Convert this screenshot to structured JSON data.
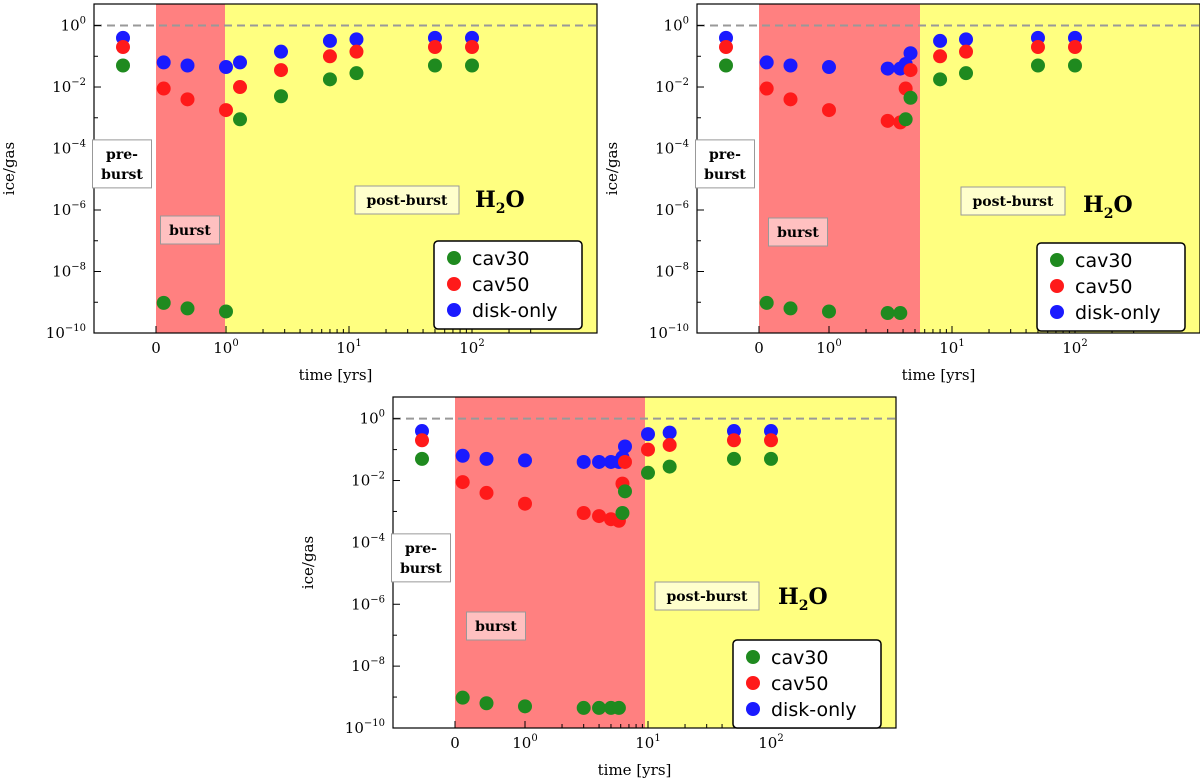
{
  "chart_data": [
    {
      "type": "scatter",
      "title": "",
      "species": {
        "base": "H",
        "sub": "2",
        "tail": "O"
      },
      "xlabel": "time [yrs]",
      "ylabel": "ice/gas",
      "ylim_log10": [
        -10,
        0.7
      ],
      "reference_line": 1,
      "regions": [
        {
          "name": "pre-burst",
          "label": [
            "pre-",
            "burst"
          ],
          "color": "#ffffff"
        },
        {
          "name": "burst",
          "label": [
            "burst"
          ],
          "color": "#ff8080"
        },
        {
          "name": "post-burst",
          "label": [
            "post-burst"
          ],
          "color": "#ffff80"
        }
      ],
      "series": [
        {
          "name": "cav30",
          "color": "#1f8a1f",
          "points": [
            [
              "pre",
              -1.3
            ],
            [
              0.11,
              -9.02
            ],
            [
              0.45,
              -9.2
            ],
            [
              1.0,
              -9.3
            ],
            [
              1.3,
              -3.05
            ],
            [
              2.8,
              -2.3
            ],
            [
              7.0,
              -1.75
            ],
            [
              11.5,
              -1.55
            ],
            [
              50,
              -1.3
            ],
            [
              100,
              -1.3
            ]
          ]
        },
        {
          "name": "cav50",
          "color": "#ff1a1a",
          "points": [
            [
              "pre",
              -0.7
            ],
            [
              0.11,
              -2.05
            ],
            [
              0.45,
              -2.4
            ],
            [
              1.0,
              -2.75
            ],
            [
              1.3,
              -2.0
            ],
            [
              2.8,
              -1.45
            ],
            [
              7.0,
              -1.0
            ],
            [
              11.5,
              -0.85
            ],
            [
              50,
              -0.7
            ],
            [
              100,
              -0.7
            ]
          ]
        },
        {
          "name": "disk-only",
          "color": "#1a1aff",
          "points": [
            [
              "pre",
              -0.4
            ],
            [
              0.11,
              -1.2
            ],
            [
              0.45,
              -1.3
            ],
            [
              1.0,
              -1.35
            ],
            [
              1.3,
              -1.2
            ],
            [
              2.8,
              -0.85
            ],
            [
              7.0,
              -0.5
            ],
            [
              11.5,
              -0.45
            ],
            [
              50,
              -0.4
            ],
            [
              100,
              -0.4
            ]
          ]
        }
      ],
      "legend": {
        "entries": [
          "cav30",
          "cav50",
          "disk-only"
        ],
        "position": "lower-right"
      }
    },
    {
      "type": "scatter",
      "title": "",
      "species": {
        "base": "H",
        "sub": "2",
        "tail": "O"
      },
      "xlabel": "time [yrs]",
      "ylabel": "ice/gas",
      "ylim_log10": [
        -10,
        0.7
      ],
      "reference_line": 1,
      "regions": [
        {
          "name": "pre-burst",
          "label": [
            "pre-",
            "burst"
          ],
          "color": "#ffffff"
        },
        {
          "name": "burst",
          "label": [
            "burst"
          ],
          "color": "#ff8080"
        },
        {
          "name": "post-burst",
          "label": [
            "post-burst"
          ],
          "color": "#ffff80"
        }
      ],
      "series": [
        {
          "name": "cav30",
          "color": "#1f8a1f",
          "points": [
            [
              "pre",
              -1.3
            ],
            [
              0.11,
              -9.02
            ],
            [
              0.45,
              -9.2
            ],
            [
              1.0,
              -9.3
            ],
            [
              3.0,
              -9.35
            ],
            [
              3.8,
              -9.35
            ],
            [
              4.2,
              -3.05
            ],
            [
              4.6,
              -2.35
            ],
            [
              8.0,
              -1.75
            ],
            [
              13.0,
              -1.55
            ],
            [
              50,
              -1.3
            ],
            [
              100,
              -1.3
            ]
          ]
        },
        {
          "name": "cav50",
          "color": "#ff1a1a",
          "points": [
            [
              "pre",
              -0.7
            ],
            [
              0.11,
              -2.05
            ],
            [
              0.45,
              -2.4
            ],
            [
              1.0,
              -2.75
            ],
            [
              3.0,
              -3.1
            ],
            [
              3.8,
              -3.15
            ],
            [
              4.2,
              -2.05
            ],
            [
              4.6,
              -1.45
            ],
            [
              8.0,
              -1.0
            ],
            [
              13.0,
              -0.85
            ],
            [
              50,
              -0.7
            ],
            [
              100,
              -0.7
            ]
          ]
        },
        {
          "name": "disk-only",
          "color": "#1a1aff",
          "points": [
            [
              "pre",
              -0.4
            ],
            [
              0.11,
              -1.2
            ],
            [
              0.45,
              -1.3
            ],
            [
              1.0,
              -1.35
            ],
            [
              3.0,
              -1.4
            ],
            [
              3.8,
              -1.4
            ],
            [
              4.2,
              -1.25
            ],
            [
              4.6,
              -0.9
            ],
            [
              8.0,
              -0.5
            ],
            [
              13.0,
              -0.45
            ],
            [
              50,
              -0.4
            ],
            [
              100,
              -0.4
            ]
          ]
        }
      ],
      "legend": {
        "entries": [
          "cav30",
          "cav50",
          "disk-only"
        ],
        "position": "lower-right"
      }
    },
    {
      "type": "scatter",
      "title": "",
      "species": {
        "base": "H",
        "sub": "2",
        "tail": "O"
      },
      "xlabel": "time [yrs]",
      "ylabel": "ice/gas",
      "ylim_log10": [
        -10,
        0.7
      ],
      "reference_line": 1,
      "regions": [
        {
          "name": "pre-burst",
          "label": [
            "pre-",
            "burst"
          ],
          "color": "#ffffff"
        },
        {
          "name": "burst",
          "label": [
            "burst"
          ],
          "color": "#ff8080"
        },
        {
          "name": "post-burst",
          "label": [
            "post-burst"
          ],
          "color": "#ffff80"
        }
      ],
      "series": [
        {
          "name": "cav30",
          "color": "#1f8a1f",
          "points": [
            [
              "pre",
              -1.3
            ],
            [
              0.11,
              -9.02
            ],
            [
              0.45,
              -9.2
            ],
            [
              1.0,
              -9.3
            ],
            [
              3.0,
              -9.35
            ],
            [
              4.0,
              -9.35
            ],
            [
              5.0,
              -9.35
            ],
            [
              5.8,
              -9.35
            ],
            [
              6.2,
              -3.05
            ],
            [
              6.5,
              -2.35
            ],
            [
              10.0,
              -1.75
            ],
            [
              15.0,
              -1.55
            ],
            [
              50,
              -1.3
            ],
            [
              100,
              -1.3
            ]
          ]
        },
        {
          "name": "cav50",
          "color": "#ff1a1a",
          "points": [
            [
              "pre",
              -0.7
            ],
            [
              0.11,
              -2.05
            ],
            [
              0.45,
              -2.4
            ],
            [
              1.0,
              -2.75
            ],
            [
              3.0,
              -3.05
            ],
            [
              4.0,
              -3.15
            ],
            [
              5.0,
              -3.25
            ],
            [
              5.8,
              -3.3
            ],
            [
              6.2,
              -2.1
            ],
            [
              6.5,
              -1.4
            ],
            [
              10.0,
              -1.0
            ],
            [
              15.0,
              -0.85
            ],
            [
              50,
              -0.7
            ],
            [
              100,
              -0.7
            ]
          ]
        },
        {
          "name": "disk-only",
          "color": "#1a1aff",
          "points": [
            [
              "pre",
              -0.4
            ],
            [
              0.11,
              -1.2
            ],
            [
              0.45,
              -1.3
            ],
            [
              1.0,
              -1.35
            ],
            [
              3.0,
              -1.4
            ],
            [
              4.0,
              -1.4
            ],
            [
              5.0,
              -1.4
            ],
            [
              5.8,
              -1.4
            ],
            [
              6.2,
              -1.25
            ],
            [
              6.5,
              -0.9
            ],
            [
              10.0,
              -0.5
            ],
            [
              15.0,
              -0.45
            ],
            [
              50,
              -0.4
            ],
            [
              100,
              -0.4
            ]
          ]
        }
      ],
      "legend": {
        "entries": [
          "cav30",
          "cav50",
          "disk-only"
        ],
        "position": "lower-right"
      }
    }
  ]
}
